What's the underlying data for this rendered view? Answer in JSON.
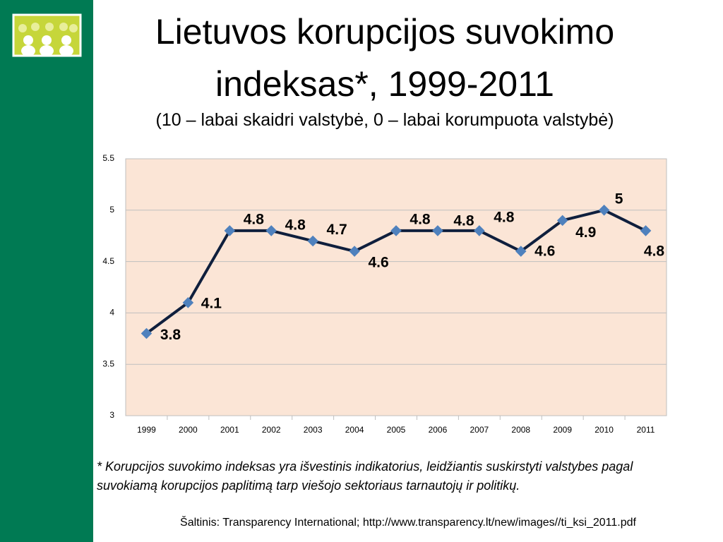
{
  "chart_data": {
    "type": "line",
    "title": "Lietuvos korupcijos suvokimo indeksas*, 1999-2011",
    "subtitle": "(10 – labai skaidri valstybė, 0 – labai korumpuota valstybė)",
    "categories": [
      "1999",
      "2000",
      "2001",
      "2002",
      "2003",
      "2004",
      "2005",
      "2006",
      "2007",
      "2008",
      "2009",
      "2010",
      "2011"
    ],
    "values": [
      3.8,
      4.1,
      4.8,
      4.8,
      4.7,
      4.6,
      4.8,
      4.8,
      4.8,
      4.6,
      4.9,
      5,
      4.8
    ],
    "color": "#0f1f3d",
    "marker_color": "#4f81bd",
    "ylim": [
      3,
      5.5
    ],
    "yticks": [
      3,
      3.5,
      4,
      4.5,
      5,
      5.5
    ],
    "grid": true,
    "footnote": "* Korupcijos suvokimo indeksas yra išvestinis indikatorius, leidžiantis suskirstyti valstybes pagal suvokiamą korupcijos paplitimą tarp viešojo sektoriaus tarnautojų ir politikų.",
    "source": "Šaltinis: Transparency International; http://www.transparency.lt/new/images//ti_ksi_2011.pdf"
  }
}
